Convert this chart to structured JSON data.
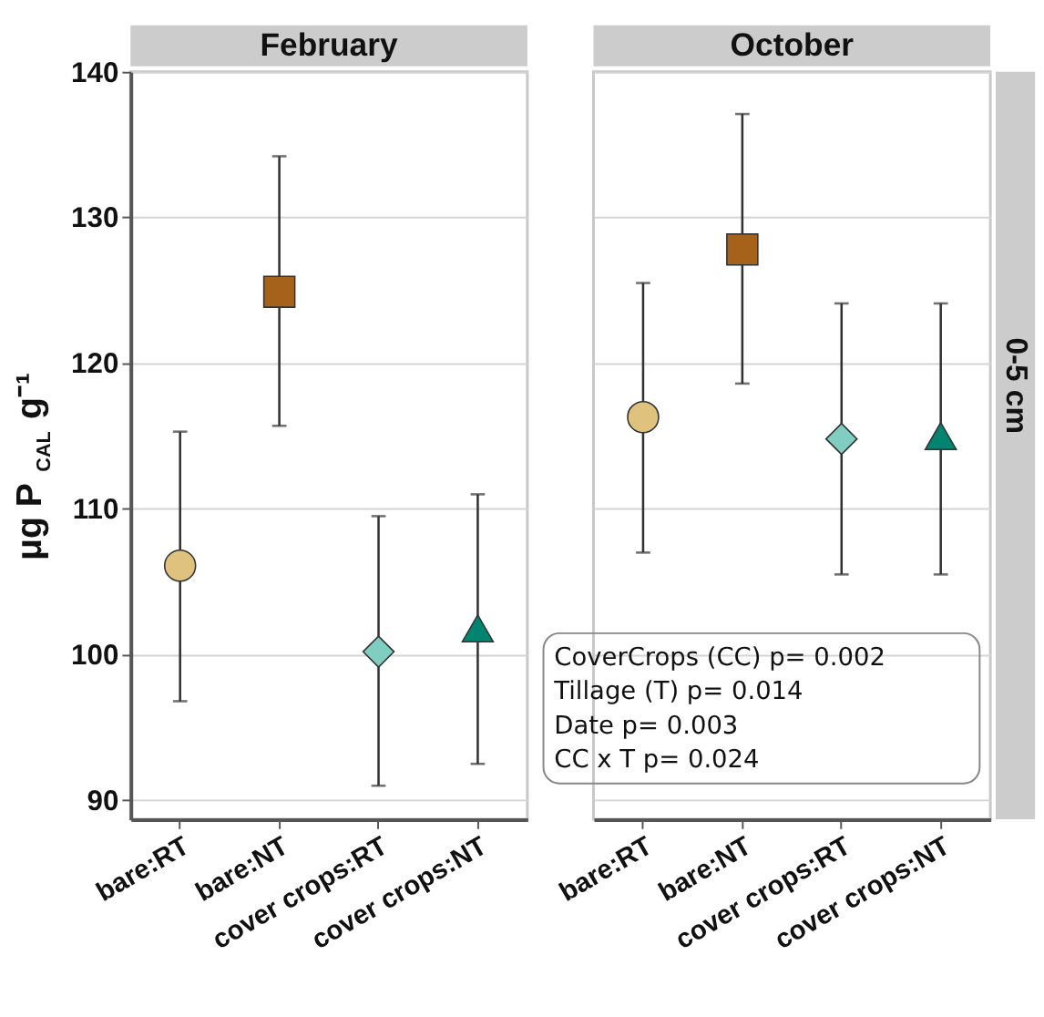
{
  "chart_data": [
    {
      "type": "scatter",
      "title": "February",
      "ylabel": "μg P$_{CAL}$ g⁻¹",
      "categories": [
        "bare:RT",
        "bare:NT",
        "cover crops:RT",
        "cover crops:NT"
      ],
      "ylim": [
        88.7,
        140
      ],
      "yticks": [
        90,
        100,
        110,
        120,
        130,
        140
      ],
      "grid": "y",
      "series": [
        {
          "color": "#dfc27d",
          "marker": "circle",
          "values": [
            106.1,
            null,
            null,
            null
          ],
          "errors": [
            [
              96.8,
              115.3
            ],
            null,
            null,
            null
          ]
        },
        {
          "color": "#a6611a",
          "marker": "square",
          "values": [
            null,
            124.9,
            null,
            null
          ],
          "errors": [
            null,
            [
              115.7,
              134.2
            ],
            null,
            null
          ]
        },
        {
          "color": "#80cdc1",
          "marker": "diamond",
          "values": [
            null,
            null,
            100.2,
            null
          ],
          "errors": [
            null,
            null,
            [
              91.0,
              109.5
            ],
            null
          ]
        },
        {
          "color": "#018571",
          "marker": "triangle",
          "values": [
            null,
            null,
            null,
            101.8
          ],
          "errors": [
            null,
            null,
            null,
            [
              92.5,
              111.0
            ]
          ]
        }
      ]
    },
    {
      "type": "scatter",
      "title": "October",
      "y2label": "0-5 cm",
      "categories": [
        "bare:RT",
        "bare:NT",
        "cover crops:RT",
        "cover crops:NT"
      ],
      "ylim": [
        88.7,
        140
      ],
      "yticks": [
        90,
        100,
        110,
        120,
        130,
        140
      ],
      "grid": "y",
      "tick_labels": "x",
      "annotations": [
        "CoverCrops (CC) p= 0.002",
        "Tillage (T)              p= 0.014",
        "Date                          p= 0.003",
        "CC x T                      p= 0.024"
      ],
      "series": [
        {
          "color": "#dfc27d",
          "marker": "circle",
          "values": [
            116.3,
            null,
            null,
            null
          ],
          "errors": [
            [
              107.0,
              125.5
            ],
            null,
            null,
            null
          ]
        },
        {
          "color": "#a6611a",
          "marker": "square",
          "values": [
            null,
            127.8,
            null,
            null
          ],
          "errors": [
            null,
            [
              118.6,
              137.1
            ],
            null,
            null
          ]
        },
        {
          "color": "#80cdc1",
          "marker": "diamond",
          "values": [
            null,
            null,
            114.8,
            null
          ],
          "errors": [
            null,
            null,
            [
              105.5,
              124.1
            ],
            null
          ]
        },
        {
          "color": "#018571",
          "marker": "triangle",
          "values": [
            null,
            null,
            null,
            115.0
          ],
          "errors": [
            null,
            null,
            null,
            [
              105.5,
              124.1
            ]
          ]
        }
      ]
    }
  ]
}
